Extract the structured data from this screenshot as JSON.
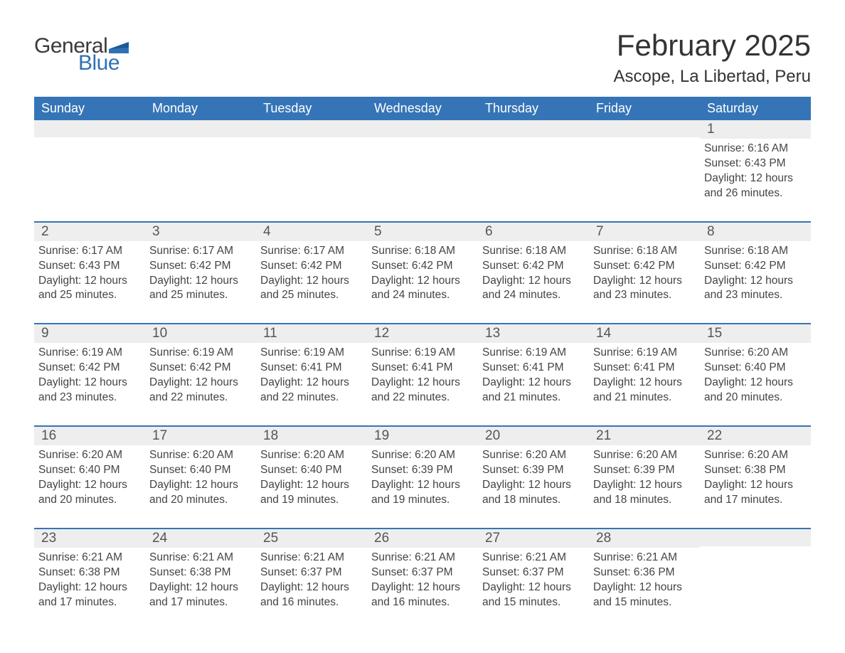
{
  "brand": {
    "text_general": "General",
    "text_blue": "Blue",
    "accent_color": "#2f72b4"
  },
  "title": "February 2025",
  "location": "Ascope, La Libertad, Peru",
  "colors": {
    "header_bg": "#3575b7",
    "header_text": "#ffffff",
    "strip_bg": "#eeeeee",
    "week_divider": "#3575b7",
    "body_text": "#444444",
    "page_bg": "#ffffff"
  },
  "typography": {
    "title_fontsize_pt": 32,
    "location_fontsize_pt": 18,
    "dow_fontsize_pt": 14,
    "daynum_fontsize_pt": 14,
    "body_fontsize_pt": 11.5
  },
  "days_of_week": [
    "Sunday",
    "Monday",
    "Tuesday",
    "Wednesday",
    "Thursday",
    "Friday",
    "Saturday"
  ],
  "labels": {
    "sunrise": "Sunrise",
    "sunset": "Sunset",
    "daylight": "Daylight"
  },
  "weeks": [
    [
      null,
      null,
      null,
      null,
      null,
      null,
      {
        "n": 1,
        "sunrise": "6:16 AM",
        "sunset": "6:43 PM",
        "daylight": "12 hours and 26 minutes."
      }
    ],
    [
      {
        "n": 2,
        "sunrise": "6:17 AM",
        "sunset": "6:43 PM",
        "daylight": "12 hours and 25 minutes."
      },
      {
        "n": 3,
        "sunrise": "6:17 AM",
        "sunset": "6:42 PM",
        "daylight": "12 hours and 25 minutes."
      },
      {
        "n": 4,
        "sunrise": "6:17 AM",
        "sunset": "6:42 PM",
        "daylight": "12 hours and 25 minutes."
      },
      {
        "n": 5,
        "sunrise": "6:18 AM",
        "sunset": "6:42 PM",
        "daylight": "12 hours and 24 minutes."
      },
      {
        "n": 6,
        "sunrise": "6:18 AM",
        "sunset": "6:42 PM",
        "daylight": "12 hours and 24 minutes."
      },
      {
        "n": 7,
        "sunrise": "6:18 AM",
        "sunset": "6:42 PM",
        "daylight": "12 hours and 23 minutes."
      },
      {
        "n": 8,
        "sunrise": "6:18 AM",
        "sunset": "6:42 PM",
        "daylight": "12 hours and 23 minutes."
      }
    ],
    [
      {
        "n": 9,
        "sunrise": "6:19 AM",
        "sunset": "6:42 PM",
        "daylight": "12 hours and 23 minutes."
      },
      {
        "n": 10,
        "sunrise": "6:19 AM",
        "sunset": "6:42 PM",
        "daylight": "12 hours and 22 minutes."
      },
      {
        "n": 11,
        "sunrise": "6:19 AM",
        "sunset": "6:41 PM",
        "daylight": "12 hours and 22 minutes."
      },
      {
        "n": 12,
        "sunrise": "6:19 AM",
        "sunset": "6:41 PM",
        "daylight": "12 hours and 22 minutes."
      },
      {
        "n": 13,
        "sunrise": "6:19 AM",
        "sunset": "6:41 PM",
        "daylight": "12 hours and 21 minutes."
      },
      {
        "n": 14,
        "sunrise": "6:19 AM",
        "sunset": "6:41 PM",
        "daylight": "12 hours and 21 minutes."
      },
      {
        "n": 15,
        "sunrise": "6:20 AM",
        "sunset": "6:40 PM",
        "daylight": "12 hours and 20 minutes."
      }
    ],
    [
      {
        "n": 16,
        "sunrise": "6:20 AM",
        "sunset": "6:40 PM",
        "daylight": "12 hours and 20 minutes."
      },
      {
        "n": 17,
        "sunrise": "6:20 AM",
        "sunset": "6:40 PM",
        "daylight": "12 hours and 20 minutes."
      },
      {
        "n": 18,
        "sunrise": "6:20 AM",
        "sunset": "6:40 PM",
        "daylight": "12 hours and 19 minutes."
      },
      {
        "n": 19,
        "sunrise": "6:20 AM",
        "sunset": "6:39 PM",
        "daylight": "12 hours and 19 minutes."
      },
      {
        "n": 20,
        "sunrise": "6:20 AM",
        "sunset": "6:39 PM",
        "daylight": "12 hours and 18 minutes."
      },
      {
        "n": 21,
        "sunrise": "6:20 AM",
        "sunset": "6:39 PM",
        "daylight": "12 hours and 18 minutes."
      },
      {
        "n": 22,
        "sunrise": "6:20 AM",
        "sunset": "6:38 PM",
        "daylight": "12 hours and 17 minutes."
      }
    ],
    [
      {
        "n": 23,
        "sunrise": "6:21 AM",
        "sunset": "6:38 PM",
        "daylight": "12 hours and 17 minutes."
      },
      {
        "n": 24,
        "sunrise": "6:21 AM",
        "sunset": "6:38 PM",
        "daylight": "12 hours and 17 minutes."
      },
      {
        "n": 25,
        "sunrise": "6:21 AM",
        "sunset": "6:37 PM",
        "daylight": "12 hours and 16 minutes."
      },
      {
        "n": 26,
        "sunrise": "6:21 AM",
        "sunset": "6:37 PM",
        "daylight": "12 hours and 16 minutes."
      },
      {
        "n": 27,
        "sunrise": "6:21 AM",
        "sunset": "6:37 PM",
        "daylight": "12 hours and 15 minutes."
      },
      {
        "n": 28,
        "sunrise": "6:21 AM",
        "sunset": "6:36 PM",
        "daylight": "12 hours and 15 minutes."
      },
      null
    ]
  ]
}
